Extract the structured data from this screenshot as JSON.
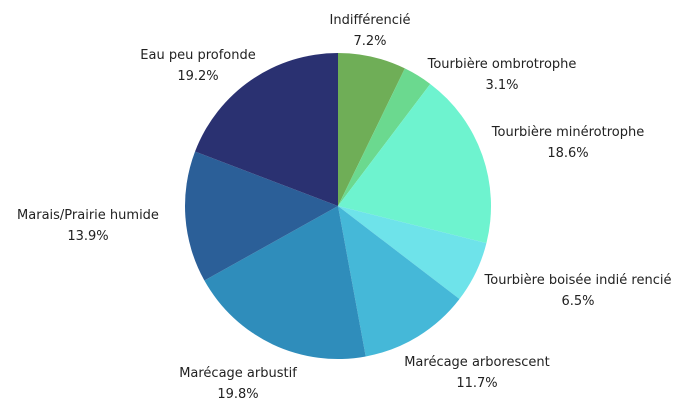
{
  "chart_data": {
    "type": "pie",
    "title": "",
    "start_angle_deg": 0,
    "direction": "clockwise",
    "slices": [
      {
        "label": "Indifférencié",
        "value": 7.2,
        "value_label": "7.2%",
        "color": "#6fae57"
      },
      {
        "label": "Tourbière ombrotrophe",
        "value": 3.1,
        "value_label": "3.1%",
        "color": "#6bd98f"
      },
      {
        "label": "Tourbière minérotrophe",
        "value": 18.6,
        "value_label": "18.6%",
        "color": "#6ef3cf"
      },
      {
        "label": "Tourbière boisée indié rencié",
        "value": 6.5,
        "value_label": "6.5%",
        "color": "#6ee3ea"
      },
      {
        "label": "Marécage arborescent",
        "value": 11.7,
        "value_label": "11.7%",
        "color": "#45b8d8"
      },
      {
        "label": "Marécage arbustif",
        "value": 19.8,
        "value_label": "19.8%",
        "color": "#2f8dbb"
      },
      {
        "label": "Marais/Prairie humide",
        "value": 13.9,
        "value_label": "13.9%",
        "color": "#2b5f98"
      },
      {
        "label": "Eau peu profonde",
        "value": 19.2,
        "value_label": "19.2%",
        "color": "#2a3171"
      }
    ]
  }
}
